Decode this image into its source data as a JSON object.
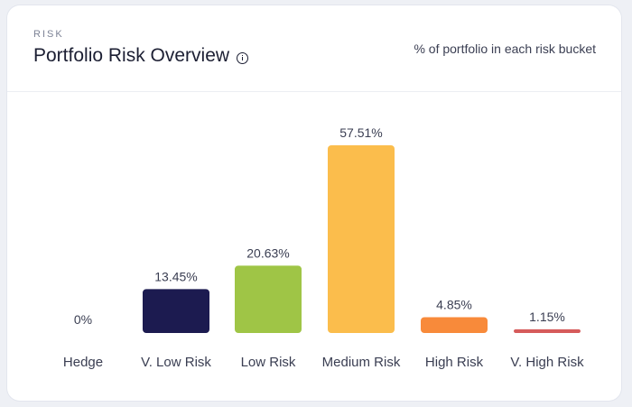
{
  "header": {
    "eyebrow": "RISK",
    "title": "Portfolio Risk Overview",
    "subtitle": "% of portfolio in each risk bucket"
  },
  "chart_data": {
    "type": "bar",
    "categories": [
      "Hedge",
      "V. Low Risk",
      "Low Risk",
      "Medium Risk",
      "High Risk",
      "V. High Risk"
    ],
    "values": [
      0,
      13.45,
      20.63,
      57.51,
      4.85,
      1.15
    ],
    "value_labels": [
      "0%",
      "13.45%",
      "20.63%",
      "57.51%",
      "4.85%",
      "1.15%"
    ],
    "colors": [
      "#1c1b50",
      "#1c1b50",
      "#9fc546",
      "#fbbd4c",
      "#f88a3a",
      "#d65b5b"
    ],
    "ylim": [
      0,
      57.51
    ],
    "grid": false,
    "legend": "none"
  }
}
